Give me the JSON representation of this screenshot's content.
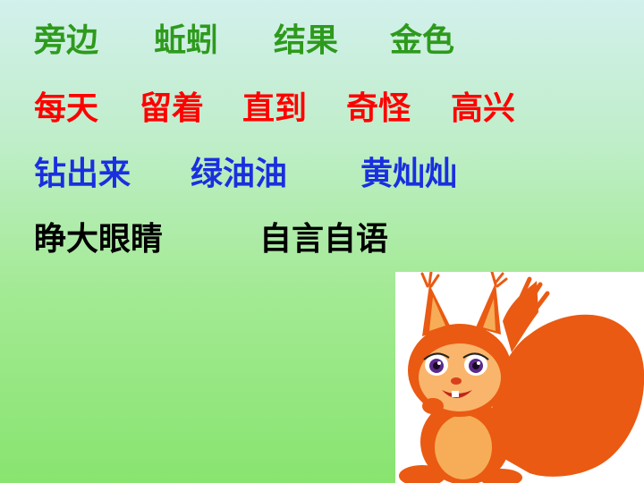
{
  "colors": {
    "row1": "#2e9a1c",
    "row2": "#ff0000",
    "row3": "#1a2fe0",
    "row4": "#000000",
    "squirrel_fur": "#ea5a12",
    "squirrel_light": "#f7ad57"
  },
  "rows": [
    {
      "words": [
        "旁边",
        "蚯蚓",
        "结果",
        "金色"
      ]
    },
    {
      "words": [
        "每天",
        "留着",
        "直到",
        "奇怪",
        "高兴"
      ]
    },
    {
      "words": [
        "钻出来",
        "绿油油",
        "黄灿灿"
      ]
    },
    {
      "words": [
        "睁大眼睛",
        "自言自语"
      ]
    }
  ],
  "illustration": {
    "icon": "squirrel-icon"
  }
}
